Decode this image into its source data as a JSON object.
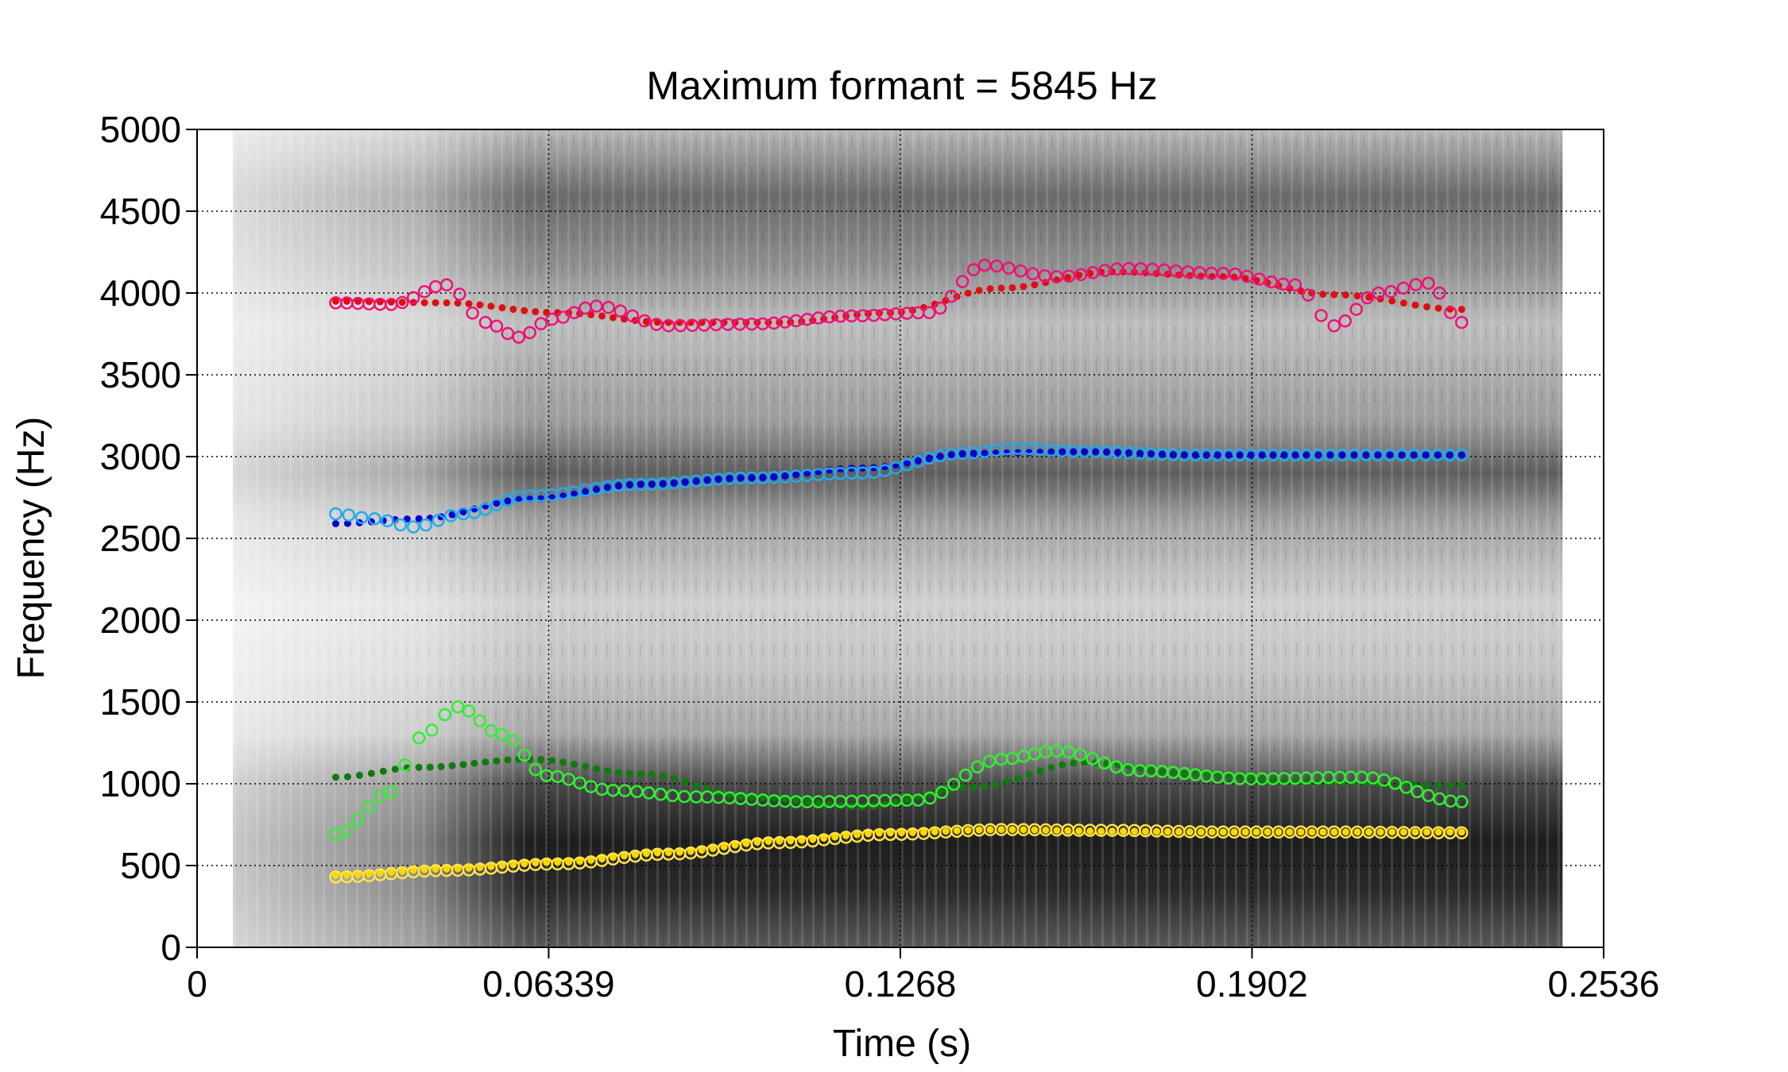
{
  "chart_data": {
    "type": "scatter",
    "title": "Maximum formant = 5845 Hz",
    "xlabel": "Time (s)",
    "ylabel": "Frequency (Hz)",
    "xlim": [
      0,
      0.2536
    ],
    "ylim": [
      0,
      5000
    ],
    "x_ticks": [
      "0",
      "0.06339",
      "0.1268",
      "0.1902",
      "0.2536"
    ],
    "y_ticks": [
      "0",
      "500",
      "1000",
      "1500",
      "2000",
      "2500",
      "3000",
      "3500",
      "4000",
      "4500",
      "5000"
    ],
    "grid": "dotted",
    "background": "spectrogram",
    "series": [
      {
        "marker": "dot",
        "color": "#ffd700",
        "x": [
          0.025,
          0.045,
          0.065,
          0.085,
          0.105,
          0.125,
          0.145,
          0.165,
          0.185,
          0.205,
          0.228
        ],
        "y": [
          440,
          480,
          520,
          580,
          650,
          700,
          720,
          710,
          705,
          705,
          705
        ]
      },
      {
        "marker": "circle",
        "color": "#ffe44d",
        "x": [
          0.025,
          0.045,
          0.065,
          0.085,
          0.105,
          0.125,
          0.145,
          0.165,
          0.185,
          0.205,
          0.228
        ],
        "y": [
          430,
          470,
          510,
          570,
          640,
          690,
          720,
          715,
          705,
          705,
          700
        ]
      },
      {
        "marker": "dot",
        "color": "#0f7a0f",
        "x": [
          0.025,
          0.04,
          0.06,
          0.08,
          0.1,
          0.12,
          0.14,
          0.16,
          0.18,
          0.2,
          0.228
        ],
        "y": [
          1040,
          1100,
          1150,
          1060,
          920,
          860,
          980,
          1130,
          1060,
          1010,
          990
        ]
      },
      {
        "marker": "circle",
        "color": "#33ee33",
        "x": [
          0.025,
          0.035,
          0.04,
          0.047,
          0.055,
          0.063,
          0.075,
          0.09,
          0.11,
          0.13,
          0.145,
          0.155,
          0.17,
          0.19,
          0.21,
          0.228
        ],
        "y": [
          690,
          950,
          1280,
          1470,
          1300,
          1050,
          960,
          920,
          890,
          900,
          1150,
          1200,
          1080,
          1030,
          1040,
          890
        ]
      },
      {
        "marker": "dot",
        "color": "#0000d0",
        "x": [
          0.025,
          0.04,
          0.06,
          0.08,
          0.1,
          0.12,
          0.14,
          0.16,
          0.18,
          0.2,
          0.228
        ],
        "y": [
          2590,
          2620,
          2740,
          2830,
          2870,
          2930,
          3020,
          3030,
          3010,
          3010,
          3010
        ]
      },
      {
        "marker": "circle",
        "color": "#22aaee",
        "x": [
          0.025,
          0.032,
          0.039,
          0.048,
          0.06,
          0.08,
          0.1,
          0.12,
          0.138,
          0.148,
          0.16,
          0.18,
          0.2,
          0.228
        ],
        "y": [
          2650,
          2620,
          2570,
          2650,
          2760,
          2830,
          2870,
          2900,
          3020,
          3050,
          3030,
          3010,
          3010,
          3010
        ]
      },
      {
        "marker": "dot",
        "color": "#dd1111",
        "x": [
          0.025,
          0.045,
          0.065,
          0.085,
          0.105,
          0.125,
          0.145,
          0.165,
          0.185,
          0.205,
          0.228
        ],
        "y": [
          3950,
          3940,
          3880,
          3820,
          3820,
          3880,
          4030,
          4130,
          4100,
          3990,
          3900
        ]
      },
      {
        "marker": "circle",
        "color": "#ee1177",
        "x": [
          0.025,
          0.035,
          0.045,
          0.052,
          0.058,
          0.064,
          0.072,
          0.085,
          0.1,
          0.118,
          0.132,
          0.142,
          0.155,
          0.168,
          0.185,
          0.198,
          0.205,
          0.213,
          0.222,
          0.228
        ],
        "y": [
          3940,
          3930,
          4050,
          3820,
          3730,
          3840,
          3920,
          3800,
          3810,
          3860,
          3880,
          4170,
          4100,
          4150,
          4120,
          4050,
          3800,
          4000,
          4060,
          3820
        ]
      }
    ]
  }
}
